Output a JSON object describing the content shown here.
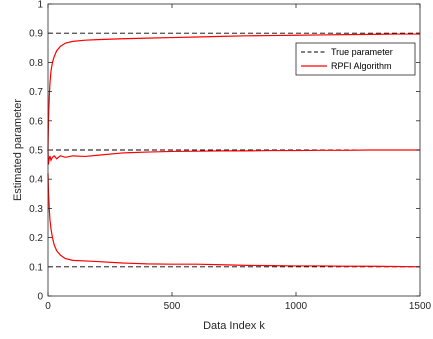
{
  "chart_data": {
    "type": "line",
    "title": "",
    "xlabel": "Data Index k",
    "ylabel": "Estimated parameter",
    "xlim": [
      0,
      1500
    ],
    "ylim": [
      0,
      1
    ],
    "xticks": [
      0,
      500,
      1000,
      1500
    ],
    "yticks": [
      0,
      0.1,
      0.2,
      0.3,
      0.4,
      0.5,
      0.6,
      0.7,
      0.8,
      0.9,
      1
    ],
    "xtick_labels": [
      "0",
      "500",
      "1000",
      "1500"
    ],
    "ytick_labels": [
      "0",
      "0.1",
      "0.2",
      "0.3",
      "0.4",
      "0.5",
      "0.6",
      "0.7",
      "0.8",
      "0.9",
      "1"
    ],
    "legend": {
      "placement": "top-right",
      "entries": [
        {
          "label": "True parameter",
          "style": "dashed",
          "color": "#000000"
        },
        {
          "label": "RPFI Algorithm",
          "style": "solid",
          "color": "#ff0000"
        }
      ]
    },
    "true_parameters": [
      0.9,
      0.5,
      0.1
    ],
    "series": [
      {
        "legend": "RPFI Algorithm",
        "color": "#ff0000",
        "x": [
          0,
          2,
          5,
          8,
          12,
          18,
          25,
          35,
          50,
          70,
          100,
          150,
          200,
          300,
          400,
          500,
          600,
          700,
          800,
          900,
          1000,
          1100,
          1200,
          1300,
          1400,
          1500
        ],
        "y": [
          0.5,
          0.6,
          0.68,
          0.73,
          0.77,
          0.8,
          0.82,
          0.84,
          0.855,
          0.866,
          0.872,
          0.876,
          0.878,
          0.881,
          0.883,
          0.885,
          0.887,
          0.889,
          0.891,
          0.892,
          0.893,
          0.894,
          0.895,
          0.896,
          0.897,
          0.897
        ]
      },
      {
        "legend": "RPFI Algorithm",
        "color": "#ff0000",
        "x": [
          0,
          2,
          5,
          8,
          12,
          18,
          25,
          35,
          50,
          70,
          100,
          150,
          200,
          300,
          400,
          500,
          600,
          700,
          800,
          900,
          1000,
          1100,
          1200,
          1300,
          1400,
          1500
        ],
        "y": [
          0.5,
          0.45,
          0.47,
          0.48,
          0.465,
          0.475,
          0.48,
          0.47,
          0.48,
          0.475,
          0.48,
          0.478,
          0.482,
          0.49,
          0.493,
          0.495,
          0.496,
          0.497,
          0.497,
          0.498,
          0.498,
          0.499,
          0.499,
          0.5,
          0.5,
          0.5
        ]
      },
      {
        "legend": "RPFI Algorithm",
        "color": "#ff0000",
        "x": [
          0,
          2,
          5,
          8,
          12,
          18,
          25,
          35,
          50,
          70,
          100,
          150,
          200,
          300,
          400,
          500,
          600,
          700,
          800,
          900,
          1000,
          1100,
          1200,
          1300,
          1400,
          1500
        ],
        "y": [
          0.42,
          0.36,
          0.3,
          0.26,
          0.23,
          0.2,
          0.175,
          0.155,
          0.14,
          0.128,
          0.122,
          0.12,
          0.118,
          0.113,
          0.11,
          0.109,
          0.109,
          0.107,
          0.105,
          0.104,
          0.103,
          0.103,
          0.102,
          0.102,
          0.101,
          0.1
        ]
      }
    ]
  }
}
